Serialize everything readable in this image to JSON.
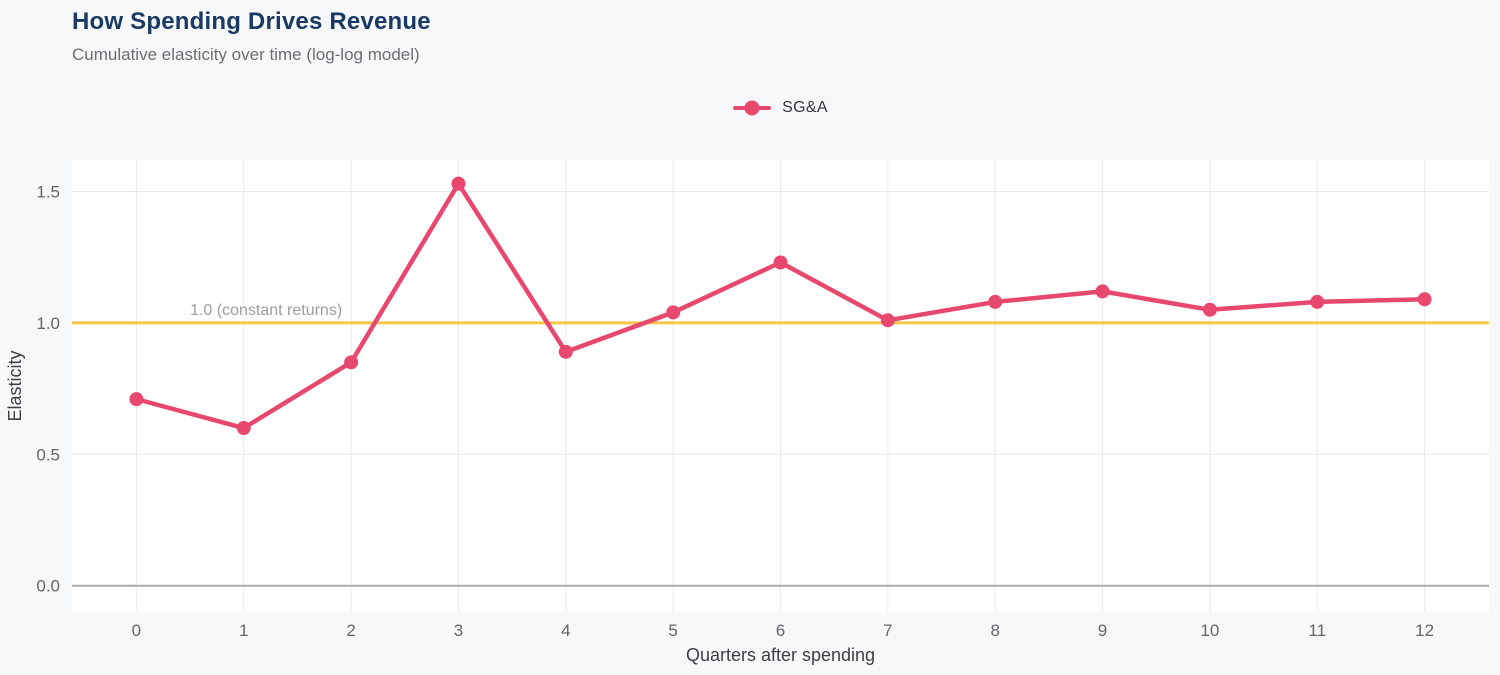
{
  "header": {
    "title": "How Spending Drives Revenue",
    "subtitle": "Cumulative elasticity over time (log-log model)"
  },
  "legend": {
    "items": [
      {
        "label": "SG&A",
        "color": "#e8486e"
      }
    ]
  },
  "chart_data": {
    "type": "line",
    "title": "How Spending Drives Revenue",
    "subtitle": "Cumulative elasticity over time (log-log model)",
    "xlabel": "Quarters after spending",
    "ylabel": "Elasticity",
    "x": [
      0,
      1,
      2,
      3,
      4,
      5,
      6,
      7,
      8,
      9,
      10,
      11,
      12
    ],
    "series": [
      {
        "name": "SG&A",
        "color": "#e8486e",
        "values": [
          0.71,
          0.6,
          0.85,
          1.53,
          0.89,
          1.04,
          1.23,
          1.01,
          1.08,
          1.12,
          1.05,
          1.08,
          1.09
        ]
      }
    ],
    "reference_line": {
      "value": 1.0,
      "label": "1.0 (constant returns)",
      "color": "#f6c64a"
    },
    "xticks": [
      0,
      1,
      2,
      3,
      4,
      5,
      6,
      7,
      8,
      9,
      10,
      11,
      12
    ],
    "yticks": [
      0.0,
      0.5,
      1.0,
      1.5
    ],
    "xlim": [
      -0.6,
      12.6
    ],
    "ylim": [
      -0.1,
      1.62
    ],
    "grid": true,
    "legend_position": "top-center"
  },
  "colors": {
    "page_bg": "#f7f8fa",
    "plot_bg": "#ffffff",
    "grid": "#e9eaec",
    "zero_line": "#aaabb0",
    "tick_label": "#63666b",
    "axis_title": "#3c3f44",
    "title": "#1b3a63",
    "subtitle": "#6a6e73",
    "annotation": "#9a9da3"
  }
}
